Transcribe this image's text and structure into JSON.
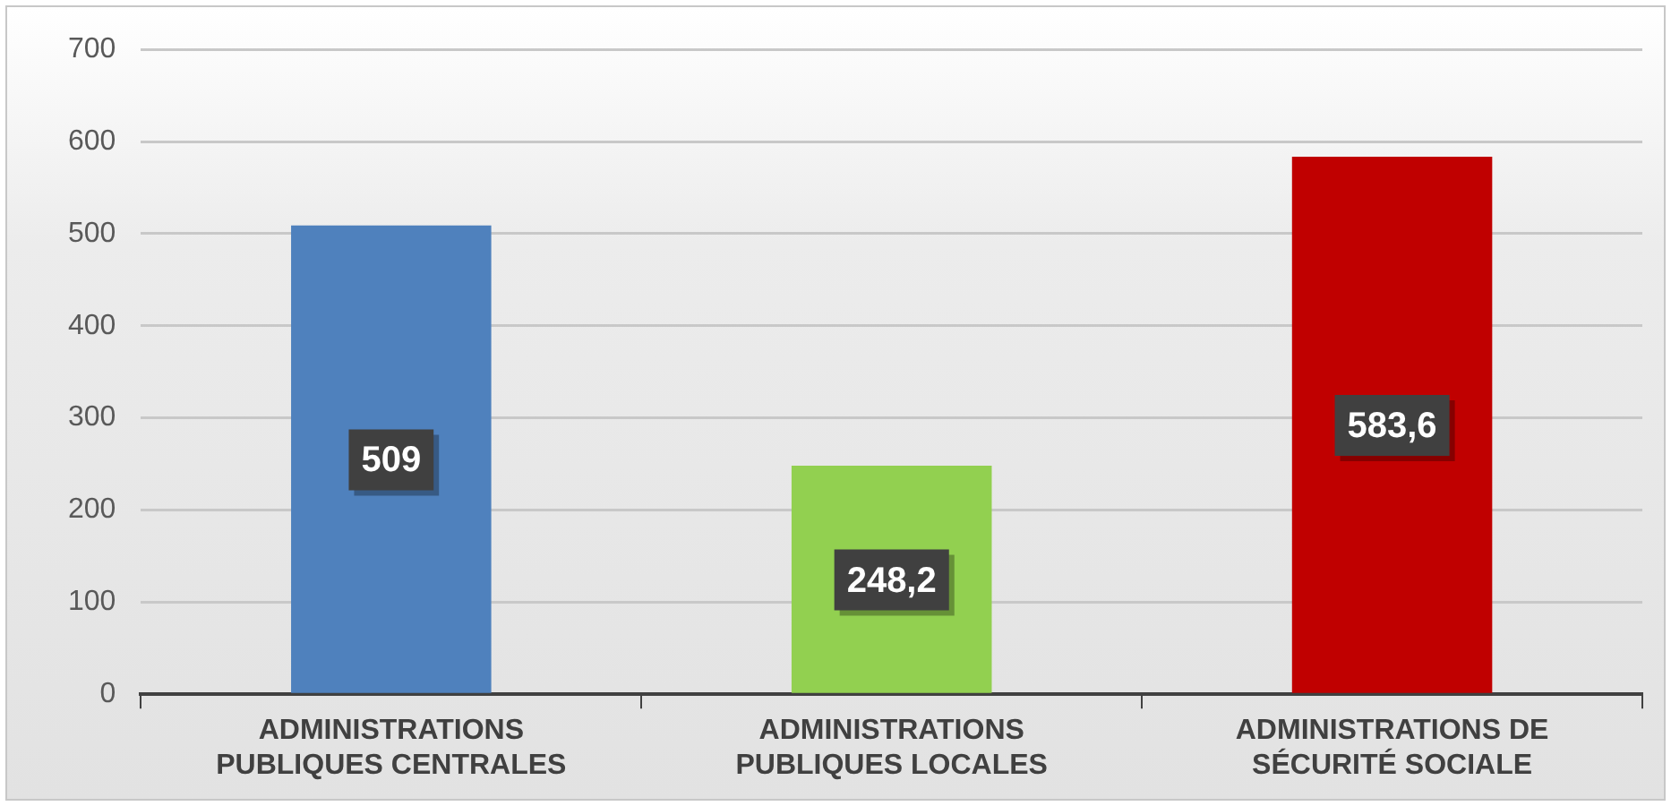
{
  "chart_data": {
    "type": "bar",
    "categories": [
      "ADMINISTRATIONS PUBLIQUES CENTRALES",
      "ADMINISTRATIONS PUBLIQUES LOCALES",
      "ADMINISTRATIONS DE SÉCURITÉ SOCIALE"
    ],
    "values": [
      509,
      248.2,
      583.6
    ],
    "colors": [
      "#4f81bd",
      "#92d050",
      "#c00000"
    ],
    "value_labels": [
      "509",
      "248,2",
      "583,6"
    ],
    "ylim": [
      0,
      700
    ],
    "yticks": [
      0,
      100,
      200,
      300,
      400,
      500,
      600,
      700
    ],
    "grid": "y",
    "legend": false
  }
}
